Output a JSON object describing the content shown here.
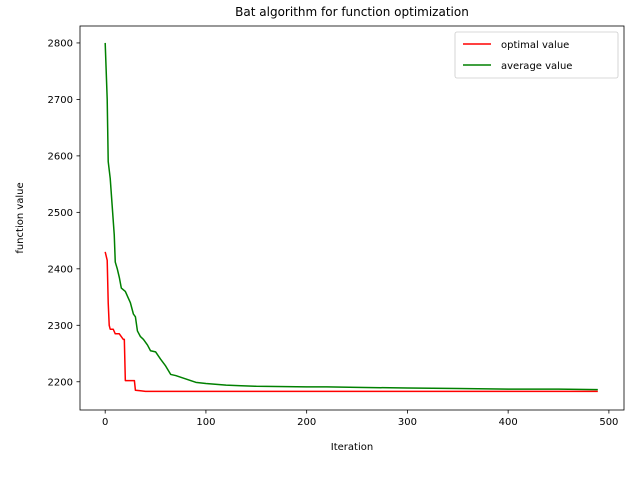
{
  "chart_data": {
    "type": "line",
    "title": "Bat algorithm for function optimization",
    "xlabel": "Iteration",
    "ylabel": "function value",
    "xlim": [
      -25,
      515
    ],
    "ylim": [
      2150,
      2830
    ],
    "xticks": [
      0,
      100,
      200,
      300,
      400,
      500
    ],
    "yticks": [
      2200,
      2300,
      2400,
      2500,
      2600,
      2700,
      2800
    ],
    "grid": false,
    "legend_position": "top-right",
    "series": [
      {
        "name": "optimal value",
        "color": "#ff0000",
        "x": [
          0,
          2,
          3,
          4,
          5,
          8,
          10,
          14,
          18,
          19,
          20,
          25,
          29,
          30,
          35,
          40,
          60,
          100,
          200,
          300,
          400,
          489
        ],
        "y": [
          2430,
          2415,
          2340,
          2300,
          2293,
          2293,
          2285,
          2285,
          2275,
          2275,
          2202,
          2202,
          2202,
          2185,
          2184,
          2183,
          2183,
          2183,
          2183,
          2183,
          2183,
          2183
        ]
      },
      {
        "name": "average value",
        "color": "#008000",
        "x": [
          0,
          2,
          3,
          5,
          7,
          9,
          10,
          12,
          14,
          16,
          20,
          25,
          28,
          30,
          32,
          35,
          38,
          42,
          45,
          50,
          55,
          60,
          65,
          70,
          80,
          90,
          100,
          120,
          135,
          150,
          200,
          220,
          250,
          300,
          350,
          400,
          450,
          489
        ],
        "y": [
          2800,
          2700,
          2590,
          2560,
          2510,
          2460,
          2412,
          2400,
          2385,
          2366,
          2360,
          2340,
          2320,
          2315,
          2290,
          2280,
          2275,
          2265,
          2255,
          2253,
          2240,
          2228,
          2213,
          2211,
          2205,
          2199,
          2197,
          2194,
          2193,
          2192,
          2191,
          2191,
          2190,
          2189,
          2188,
          2187,
          2187,
          2186
        ]
      }
    ]
  }
}
